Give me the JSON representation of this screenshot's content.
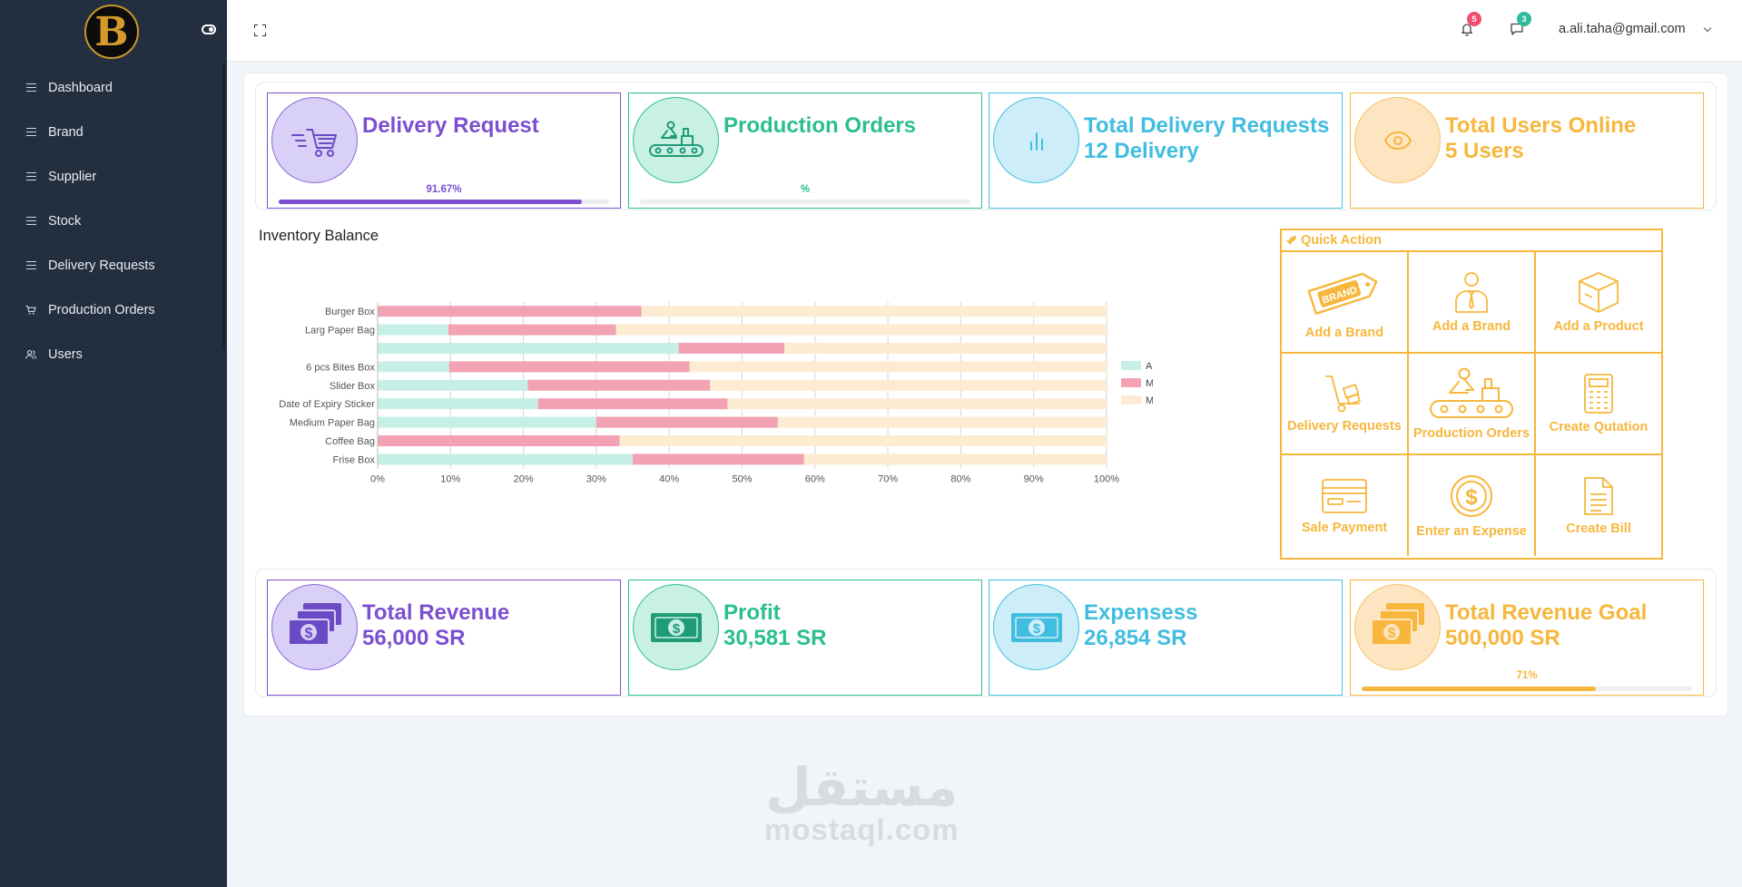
{
  "sidebar": {
    "logo_letter": "B",
    "items": [
      {
        "label": "Dashboard",
        "icon": "bars-icon"
      },
      {
        "label": "Brand",
        "icon": "bars-icon"
      },
      {
        "label": "Supplier",
        "icon": "bars-icon"
      },
      {
        "label": "Stock",
        "icon": "bars-icon"
      },
      {
        "label": "Delivery Requests",
        "icon": "bars-icon"
      },
      {
        "label": "Production Orders",
        "icon": "cart-icon"
      },
      {
        "label": "Users",
        "icon": "users-icon"
      }
    ]
  },
  "header": {
    "notifications_count": "5",
    "messages_count": "3",
    "user_email": "a.ali.taha@gmail.com"
  },
  "top_stats": [
    {
      "title": "Delivery Request",
      "subtitle": "",
      "percent_label": "91.67%",
      "progress": 0.9167,
      "color": "#7c4fd0"
    },
    {
      "title": "Production Orders",
      "subtitle": "",
      "percent_label": "%",
      "progress": 0,
      "color": "#2bbf8e"
    },
    {
      "title": "Total Delivery Requests",
      "subtitle": "12 Delivery",
      "color": "#41bde0"
    },
    {
      "title": "Total Users Online",
      "subtitle": "5 Users",
      "color": "#f6b73c"
    }
  ],
  "chart_data": {
    "type": "bar",
    "orientation": "horizontal",
    "stacked": true,
    "title": "Inventory Balance",
    "categories": [
      "Burger Box",
      "Larg Paper Bag",
      "",
      "6 pcs Bites Box",
      "Slider Box",
      "Date of Expiry Sticker",
      "Medium Paper Bag",
      "Coffee Bag",
      "Frise Box"
    ],
    "series": [
      {
        "name": "Amount",
        "color": "#c6efe7",
        "values": [
          0,
          9.7,
          41.3,
          9.8,
          20.6,
          22,
          30,
          0,
          35
        ]
      },
      {
        "name": "Min",
        "color": "#f2a2b3",
        "values": [
          36.2,
          23,
          14.5,
          33,
          25,
          26,
          24.9,
          33.2,
          23.5
        ]
      },
      {
        "name": "Max",
        "color": "#fdebd2",
        "values": [
          63.8,
          67.3,
          44.2,
          57.2,
          54.4,
          52,
          45.1,
          66.8,
          41.5
        ]
      }
    ],
    "xlim": [
      0,
      100
    ],
    "x_ticks": [
      "0%",
      "10%",
      "20%",
      "30%",
      "40%",
      "50%",
      "60%",
      "70%",
      "80%",
      "90%",
      "100%"
    ],
    "grid": true,
    "legend": "right"
  },
  "quick_action": {
    "title": "Quick Action",
    "items": [
      {
        "label": "Add a Brand",
        "icon": "brand-tag-icon"
      },
      {
        "label": "Add a Brand",
        "icon": "person-icon"
      },
      {
        "label": "Add a Product",
        "icon": "box-icon"
      },
      {
        "label": "Delivery Requests",
        "icon": "hand-truck-icon"
      },
      {
        "label": "Production Orders",
        "icon": "conveyor-icon"
      },
      {
        "label": "Create Qutation",
        "icon": "calculator-icon"
      },
      {
        "label": "Sale Payment",
        "icon": "credit-card-icon"
      },
      {
        "label": "Enter an Expense",
        "icon": "dollar-coin-icon"
      },
      {
        "label": "Create Bill",
        "icon": "bill-icon"
      }
    ]
  },
  "bottom_stats": [
    {
      "title": "Total Revenue",
      "subtitle": "56,000 SR",
      "color": "#7c4fd0"
    },
    {
      "title": "Profit",
      "subtitle": "30,581 SR",
      "color": "#2bbf8e"
    },
    {
      "title": "Expensess",
      "subtitle": "26,854 SR",
      "color": "#41bde0"
    },
    {
      "title": "Total Revenue Goal",
      "subtitle": "500,000 SR",
      "percent_label": "71%",
      "progress": 0.71,
      "color": "#f6b73c"
    }
  ],
  "watermark": {
    "arabic": "مستقل",
    "latin": "mostaql.com"
  }
}
